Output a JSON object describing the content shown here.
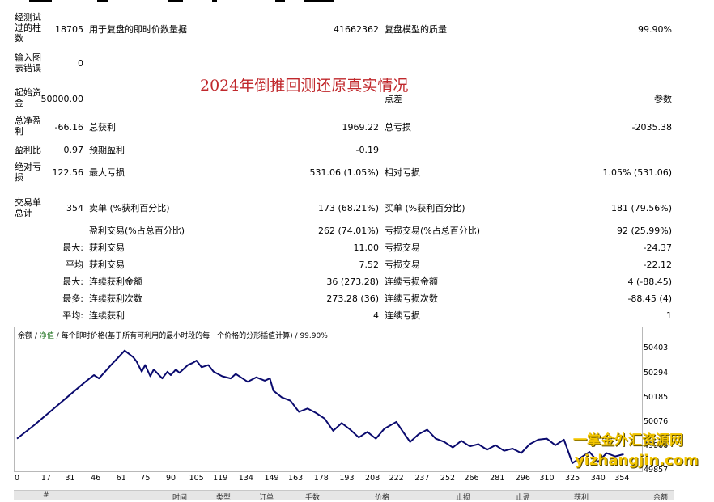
{
  "overlay_title": "2024年倒推回测还原真实情况",
  "stats": {
    "bars_tested_label": "经测试过的柱数",
    "bars_tested_value": "18705",
    "ticks_modelled_label": "用于复盘的即时价数量据",
    "ticks_modelled_value": "41662362",
    "model_quality_label": "复盘模型的质量",
    "model_quality_value": "99.90%",
    "mismatch_label": "输入图表错误",
    "mismatch_value": "0",
    "initial_deposit_label": "起始资金",
    "initial_deposit_value": "50000.00",
    "spread_label": "点差",
    "spread_value": "参数",
    "net_profit_label": "总净盈利",
    "net_profit_value": "-66.16",
    "gross_profit_label": "总获利",
    "gross_profit_value": "1969.22",
    "gross_loss_label": "总亏损",
    "gross_loss_value": "-2035.38",
    "profit_factor_label": "盈利比",
    "profit_factor_value": "0.97",
    "expected_payoff_label": "预期盈利",
    "expected_payoff_value": "-0.19",
    "abs_drawdown_label": "绝对亏损",
    "abs_drawdown_value": "122.56",
    "max_drawdown_label": "最大亏损",
    "max_drawdown_value": "531.06 (1.05%)",
    "rel_drawdown_label": "相对亏损",
    "rel_drawdown_value": "1.05% (531.06)",
    "total_trades_label": "交易单总计",
    "total_trades_value": "354",
    "short_label": "卖单 (%获利百分比)",
    "short_value": "173 (68.21%)",
    "long_label": "买单 (%获利百分比)",
    "long_value": "181 (79.56%)",
    "profit_trades_label": "盈利交易(%占总百分比)",
    "profit_trades_value": "262 (74.01%)",
    "loss_trades_label": "亏损交易(%占总百分比)",
    "loss_trades_value": "92 (25.99%)",
    "largest_prefix": "最大:",
    "largest_profit_label": "获利交易",
    "largest_profit_value": "11.00",
    "largest_loss_label": "亏损交易",
    "largest_loss_value": "-24.37",
    "average_prefix": "平均",
    "average_profit_label": "获利交易",
    "average_profit_value": "7.52",
    "average_loss_label": "亏损交易",
    "average_loss_value": "-22.12",
    "max_prefix": "最大:",
    "max_consec_wins_label": "连续获利金额",
    "max_consec_wins_value": "36 (273.28)",
    "max_consec_losses_label": "连续亏损金额",
    "max_consec_losses_value": "4 (-88.45)",
    "most_prefix": "最多:",
    "max_consec_profit_label": "连续获利次数",
    "max_consec_profit_value": "273.28 (36)",
    "max_consec_loss_label": "连续亏损次数",
    "max_consec_loss_value": "-88.45 (4)",
    "avg_prefix": "平均:",
    "avg_consec_wins_label": "连续获利",
    "avg_consec_wins_value": "4",
    "avg_consec_losses_label": "连续亏损",
    "avg_consec_losses_value": "1"
  },
  "chart_header": {
    "balance": "余额",
    "sep1": "/",
    "equity": "净值",
    "sep2": "/",
    "desc": "每个即时价格(基于所有可利用的最小时段的每一个价格的分形插值计算)",
    "sep3": "/",
    "quality": "99.90%"
  },
  "footer_cols": [
    "#",
    "时间",
    "类型",
    "订单",
    "手数",
    "价格",
    "止损",
    "止盈",
    "获利",
    "余额"
  ],
  "watermark": {
    "cn": "一掌金外汇资源网",
    "url": "yizhangjin.com"
  },
  "colors": {
    "line": "#0a0a6e",
    "overlay_title": "#c0282c",
    "watermark": "#f2c500"
  },
  "chart_data": {
    "type": "line",
    "title": "",
    "xlabel": "",
    "ylabel": "",
    "x_ticks": [
      0,
      17,
      31,
      46,
      61,
      75,
      90,
      105,
      119,
      134,
      149,
      163,
      178,
      193,
      208,
      222,
      237,
      252,
      266,
      281,
      296,
      310,
      325,
      340,
      354
    ],
    "y_ticks": [
      50403,
      50294,
      50185,
      50076,
      49966,
      49857
    ],
    "xlim": [
      0,
      360
    ],
    "ylim": [
      49857,
      50430
    ],
    "series": [
      {
        "x": [
          0,
          10,
          20,
          30,
          40,
          45,
          48,
          55,
          60,
          63,
          68,
          70,
          73,
          75,
          78,
          80,
          85,
          88,
          90,
          93,
          95,
          100,
          103,
          105,
          108,
          112,
          115,
          120,
          125,
          128,
          135,
          140,
          145,
          148,
          150,
          155,
          160,
          165,
          170,
          175,
          180,
          185,
          190,
          195,
          200,
          205,
          210,
          215,
          222,
          225,
          230,
          235,
          240,
          245,
          250,
          255,
          260,
          265,
          270,
          275,
          280,
          285,
          290,
          295,
          300,
          305,
          310,
          315,
          320,
          325,
          330,
          335,
          340,
          345,
          350,
          355
        ],
        "y": [
          50000,
          50060,
          50125,
          50190,
          50255,
          50285,
          50270,
          50330,
          50370,
          50395,
          50365,
          50345,
          50300,
          50330,
          50280,
          50310,
          50270,
          50300,
          50285,
          50310,
          50295,
          50330,
          50340,
          50350,
          50320,
          50330,
          50300,
          50280,
          50270,
          50290,
          50255,
          50275,
          50260,
          50270,
          50215,
          50185,
          50170,
          50120,
          50135,
          50115,
          50090,
          50035,
          50070,
          50040,
          50005,
          50030,
          50000,
          50045,
          50075,
          50040,
          49985,
          50020,
          50040,
          50000,
          49985,
          49960,
          49990,
          49965,
          49975,
          49950,
          49970,
          49945,
          49955,
          49935,
          49975,
          49995,
          50000,
          49970,
          49995,
          49890,
          49915,
          49940,
          49895,
          49935,
          49920,
          49930
        ]
      }
    ]
  }
}
